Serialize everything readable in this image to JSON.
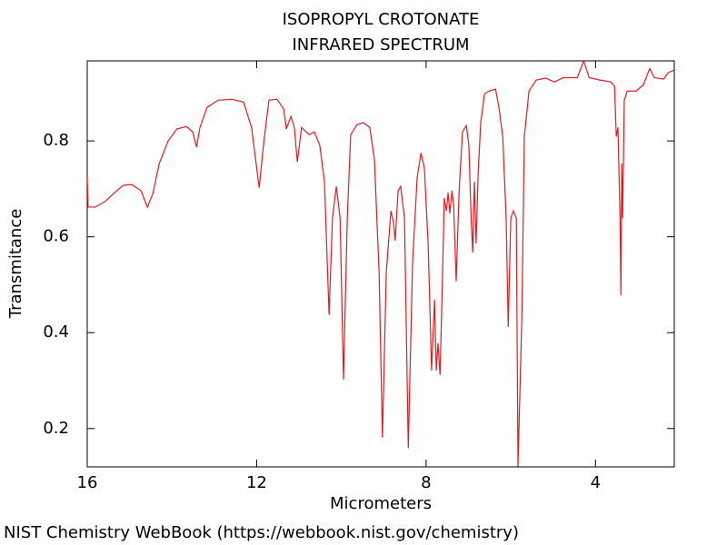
{
  "chart_data": {
    "type": "line",
    "title": "ISOPROPYL CROTONATE",
    "subtitle": "INFRARED SPECTRUM",
    "x_label": "Micrometers",
    "y_label": "Transmitance",
    "credit": "NIST Chemistry WebBook (https://webbook.nist.gov/chemistry)",
    "x": [
      16.0,
      15.98,
      15.81,
      15.59,
      15.38,
      15.16,
      14.95,
      14.73,
      14.58,
      14.45,
      14.3,
      14.09,
      13.88,
      13.66,
      13.51,
      13.42,
      13.34,
      13.17,
      12.91,
      12.59,
      12.31,
      12.12,
      11.94,
      11.84,
      11.71,
      11.52,
      11.36,
      11.3,
      11.19,
      11.11,
      11.04,
      10.94,
      10.76,
      10.64,
      10.51,
      10.4,
      10.29,
      10.21,
      10.12,
      10.03,
      9.95,
      9.86,
      9.78,
      9.63,
      9.48,
      9.33,
      9.22,
      9.11,
      9.03,
      8.94,
      8.83,
      8.77,
      8.73,
      8.66,
      8.6,
      8.51,
      8.42,
      8.32,
      8.21,
      8.12,
      8.04,
      7.95,
      7.87,
      7.8,
      7.76,
      7.72,
      7.67,
      7.61,
      7.57,
      7.52,
      7.48,
      7.44,
      7.39,
      7.35,
      7.29,
      7.22,
      7.14,
      7.05,
      6.99,
      6.94,
      6.9,
      6.86,
      6.82,
      6.77,
      6.71,
      6.62,
      6.52,
      6.36,
      6.28,
      6.19,
      6.11,
      6.06,
      6.0,
      5.94,
      5.87,
      5.83,
      5.74,
      5.68,
      5.57,
      5.4,
      5.18,
      4.97,
      4.76,
      4.43,
      4.28,
      4.15,
      3.9,
      3.64,
      3.55,
      3.51,
      3.47,
      3.42,
      3.4,
      3.38,
      3.36,
      3.32,
      3.25,
      3.04,
      2.87,
      2.72,
      2.61,
      2.39,
      2.29,
      2.14
    ],
    "series": [
      {
        "name": "Transmitance",
        "color": "#e8191c",
        "values": [
          0.724,
          0.662,
          0.662,
          0.673,
          0.69,
          0.707,
          0.709,
          0.696,
          0.662,
          0.69,
          0.753,
          0.8,
          0.825,
          0.83,
          0.819,
          0.787,
          0.828,
          0.87,
          0.885,
          0.887,
          0.881,
          0.828,
          0.702,
          0.791,
          0.885,
          0.887,
          0.866,
          0.825,
          0.851,
          0.828,
          0.756,
          0.828,
          0.813,
          0.819,
          0.791,
          0.715,
          0.437,
          0.639,
          0.705,
          0.639,
          0.302,
          0.639,
          0.813,
          0.834,
          0.838,
          0.828,
          0.762,
          0.526,
          0.181,
          0.526,
          0.654,
          0.63,
          0.592,
          0.696,
          0.705,
          0.639,
          0.159,
          0.545,
          0.724,
          0.775,
          0.743,
          0.582,
          0.321,
          0.469,
          0.321,
          0.378,
          0.312,
          0.526,
          0.681,
          0.654,
          0.692,
          0.649,
          0.696,
          0.668,
          0.507,
          0.696,
          0.819,
          0.832,
          0.791,
          0.649,
          0.567,
          0.715,
          0.586,
          0.734,
          0.838,
          0.898,
          0.904,
          0.908,
          0.87,
          0.809,
          0.639,
          0.412,
          0.639,
          0.654,
          0.639,
          0.121,
          0.431,
          0.809,
          0.904,
          0.927,
          0.931,
          0.923,
          0.932,
          0.932,
          0.967,
          0.932,
          0.927,
          0.923,
          0.914,
          0.809,
          0.828,
          0.639,
          0.478,
          0.753,
          0.639,
          0.885,
          0.904,
          0.904,
          0.917,
          0.951,
          0.932,
          0.929,
          0.942,
          0.948
        ]
      }
    ],
    "xlim": [
      16.0,
      2.14
    ],
    "ylim": [
      0.12,
      0.967
    ],
    "xticks": [
      16,
      12,
      8,
      4
    ],
    "yticks": [
      0.2,
      0.4,
      0.6,
      0.8
    ]
  }
}
